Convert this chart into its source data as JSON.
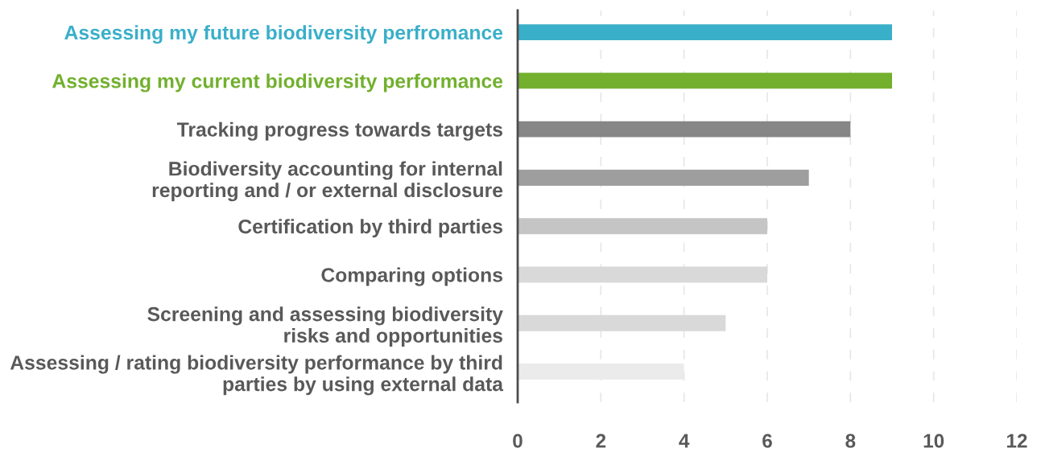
{
  "chart_data": {
    "type": "bar",
    "orientation": "horizontal",
    "categories": [
      "Assessing my future biodiversity perfromance",
      "Assessing my current biodiversity performance",
      "Tracking progress towards targets",
      "Biodiversity accounting for internal\nreporting and / or external disclosure",
      "Certification by third parties",
      "Comparing options",
      "Screening and assessing biodiversity\nrisks and opportunities",
      "Assessing / rating biodiversity performance by third\nparties by using external data"
    ],
    "values": [
      9,
      9,
      8,
      7,
      6,
      6,
      5,
      4
    ],
    "colors": [
      "#3aafc9",
      "#72b02e",
      "#868686",
      "#9e9e9e",
      "#c5c5c5",
      "#d9d9d9",
      "#d9d9d9",
      "#ebebeb"
    ],
    "xlim": [
      0,
      12
    ],
    "xticks": [
      0,
      2,
      4,
      6,
      8,
      10,
      12
    ],
    "grid": "x",
    "legend": false
  }
}
